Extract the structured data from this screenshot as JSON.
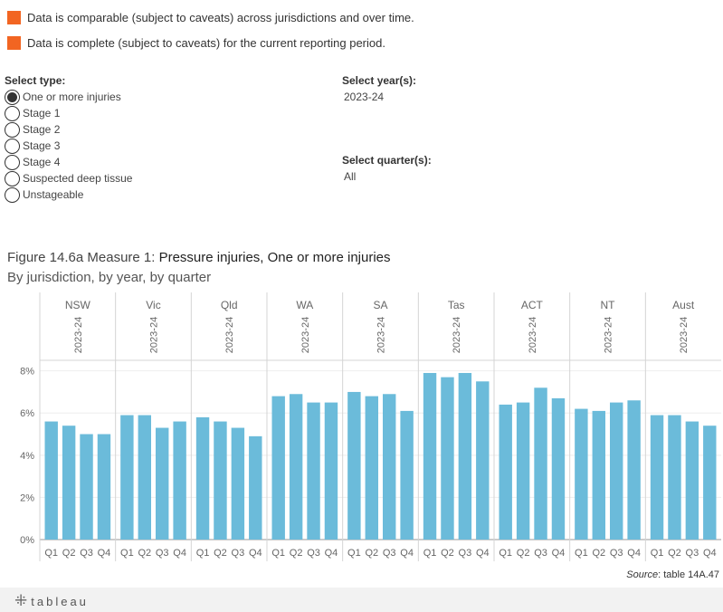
{
  "legend": [
    {
      "text": "Data is comparable (subject to caveats) across jurisdictions and over time.",
      "color": "#f26522"
    },
    {
      "text": "Data is complete (subject to caveats) for the current reporting period.",
      "color": "#f26522"
    }
  ],
  "controls": {
    "type_title": "Select type:",
    "type_options": [
      "One or more injuries",
      "Stage 1",
      "Stage 2",
      "Stage 3",
      "Stage 4",
      "Suspected deep tissue",
      "Unstageable"
    ],
    "type_selected": "One or more injuries",
    "year_title": "Select year(s):",
    "year_value": "2023-24",
    "quarter_title": "Select quarter(s):",
    "quarter_value": "All"
  },
  "figure": {
    "title_prefix": "Figure 14.6a Measure 1: ",
    "title_main": "Pressure injuries, One or more injuries",
    "subtitle": "By jurisdiction, by year, by quarter"
  },
  "source": {
    "label": "Source",
    "text": ": table 14A.47"
  },
  "footer": {
    "logo_text": "tableau"
  },
  "chart_data": {
    "type": "bar",
    "bar_color": "#6bbbda",
    "year": "2023-24",
    "jurisdictions": [
      "NSW",
      "Vic",
      "Qld",
      "WA",
      "SA",
      "Tas",
      "ACT",
      "NT",
      "Aust"
    ],
    "quarters": [
      "Q1",
      "Q2",
      "Q3",
      "Q4"
    ],
    "values": [
      [
        5.6,
        5.4,
        5.0,
        5.0
      ],
      [
        5.9,
        5.9,
        5.3,
        5.6
      ],
      [
        5.8,
        5.6,
        5.3,
        4.9
      ],
      [
        6.8,
        6.9,
        6.5,
        6.5
      ],
      [
        7.0,
        6.8,
        6.9,
        6.1
      ],
      [
        7.9,
        7.7,
        7.9,
        7.5
      ],
      [
        6.4,
        6.5,
        7.2,
        6.7
      ],
      [
        6.2,
        6.1,
        6.5,
        6.6
      ],
      [
        5.9,
        5.9,
        5.6,
        5.4
      ]
    ],
    "y_ticks": [
      "0%",
      "2%",
      "4%",
      "6%",
      "8%"
    ],
    "y_tick_values": [
      0,
      2,
      4,
      6,
      8
    ],
    "ylim": [
      0,
      8.5
    ],
    "ylabel": "",
    "xlabel": ""
  }
}
